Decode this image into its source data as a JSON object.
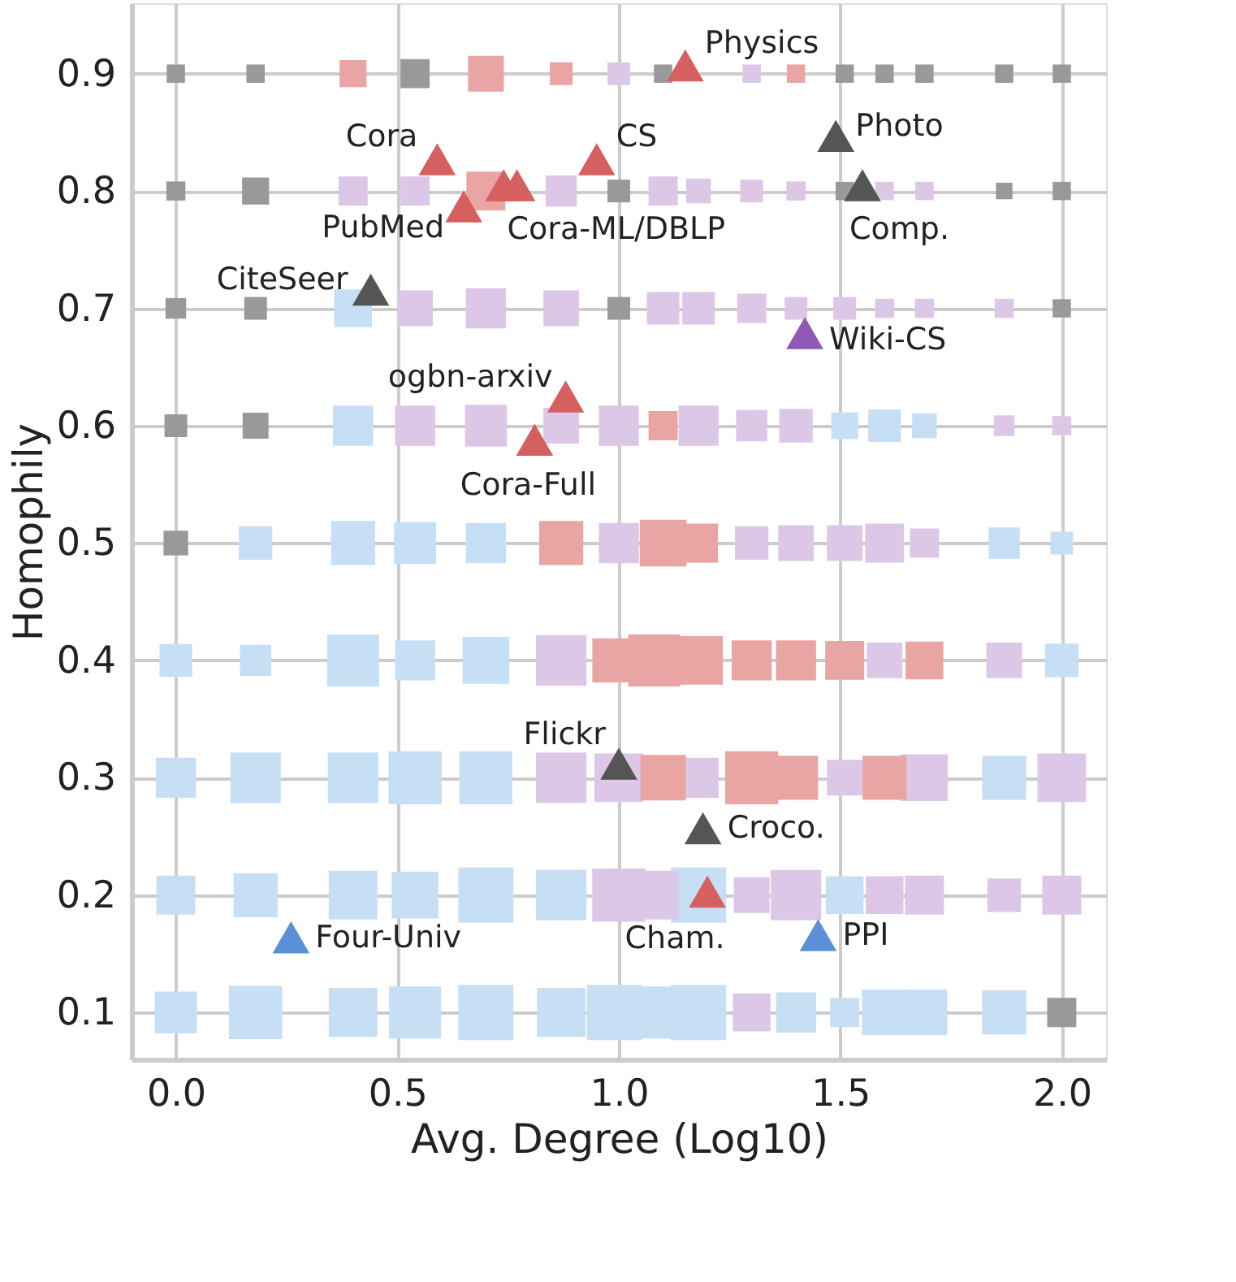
{
  "chart_data": {
    "type": "scatter",
    "xlabel": "Avg. Degree (Log10)",
    "ylabel": "Homophily",
    "xlim": [
      -0.1,
      2.1
    ],
    "ylim": [
      0.06,
      0.96
    ],
    "xticks": [
      {
        "value": 0,
        "label": "0.0"
      },
      0.5,
      {
        "value": 1,
        "label": "1.0"
      },
      1.5,
      {
        "value": 2,
        "label": "2.0"
      }
    ],
    "yticks": [
      0.1,
      0.2,
      0.3,
      0.4,
      0.5,
      0.6,
      0.7,
      0.8,
      0.9
    ],
    "grid": true,
    "series": [
      {
        "type": "bubble",
        "marker": "square",
        "color": "#c6dff5",
        "x": [
          0.4,
          0.4,
          1.51,
          1.6,
          1.69,
          0.18,
          0.4,
          0.54,
          0.7,
          1.87,
          2.0,
          0.0,
          0.18,
          0.4,
          0.54,
          0.7,
          2.0,
          0.0,
          0.18,
          0.4,
          0.54,
          0.7,
          1.87,
          0.0,
          0.18,
          0.4,
          0.54,
          0.7,
          0.87,
          1.18,
          1.51,
          0.0,
          0.18,
          0.4,
          0.54,
          0.7,
          0.87,
          0.99,
          1.08,
          1.18,
          1.4,
          1.51,
          1.6,
          1.69,
          1.87
        ],
        "values": [
          0.7,
          0.6,
          0.6,
          0.6,
          0.6,
          0.5,
          0.5,
          0.5,
          0.5,
          0.5,
          0.5,
          0.4,
          0.4,
          0.4,
          0.4,
          0.4,
          0.4,
          0.3,
          0.3,
          0.3,
          0.3,
          0.3,
          0.3,
          0.2,
          0.2,
          0.2,
          0.2,
          0.2,
          0.2,
          0.2,
          0.2,
          0.1,
          0.1,
          0.1,
          0.1,
          0.1,
          0.1,
          0.1,
          0.1,
          0.1,
          0.1,
          0.1,
          0.1,
          0.1,
          0.1
        ],
        "sizes": [
          0.47,
          0.53,
          0.24,
          0.35,
          0.2,
          0.37,
          0.64,
          0.58,
          0.53,
          0.32,
          0.17,
          0.35,
          0.32,
          0.89,
          0.53,
          0.72,
          0.37,
          0.53,
          0.84,
          0.84,
          0.93,
          0.93,
          0.64,
          0.5,
          0.64,
          0.78,
          0.72,
          1,
          0.84,
          1,
          0.47,
          0.58,
          0.93,
          0.78,
          0.89,
          1,
          0.78,
          1,
          0.89,
          1,
          0.53,
          0.28,
          0.68,
          0.68,
          0.64
        ]
      },
      {
        "type": "bubble",
        "marker": "square",
        "color": "#dcc8e6",
        "x": [
          1.0,
          1.3,
          0.4,
          0.54,
          0.87,
          1.1,
          1.18,
          1.3,
          1.4,
          1.6,
          1.69,
          0.54,
          0.7,
          0.87,
          1.1,
          1.18,
          1.3,
          1.4,
          1.51,
          1.6,
          1.69,
          1.87,
          0.54,
          0.7,
          0.87,
          1.0,
          1.18,
          1.3,
          1.4,
          1.87,
          2.0,
          1.0,
          1.3,
          1.4,
          1.51,
          1.6,
          1.69,
          0.87,
          1.6,
          1.87,
          0.87,
          1.0,
          1.18,
          1.51,
          1.69,
          2.0,
          1.0,
          1.08,
          1.3,
          1.4,
          1.6,
          1.69,
          1.87,
          2.0,
          1.3
        ],
        "values": [
          0.9,
          0.9,
          0.8,
          0.8,
          0.8,
          0.8,
          0.8,
          0.8,
          0.8,
          0.8,
          0.8,
          0.7,
          0.7,
          0.7,
          0.7,
          0.7,
          0.7,
          0.7,
          0.7,
          0.7,
          0.7,
          0.7,
          0.6,
          0.6,
          0.6,
          0.6,
          0.6,
          0.6,
          0.6,
          0.6,
          0.6,
          0.5,
          0.5,
          0.5,
          0.5,
          0.5,
          0.5,
          0.4,
          0.4,
          0.4,
          0.3,
          0.3,
          0.3,
          0.3,
          0.3,
          0.3,
          0.2,
          0.2,
          0.2,
          0.2,
          0.2,
          0.2,
          0.2,
          0.2,
          0.1
        ],
        "sizes": [
          0.17,
          0.11,
          0.28,
          0.28,
          0.32,
          0.28,
          0.2,
          0.17,
          0.12,
          0.11,
          0.11,
          0.42,
          0.53,
          0.42,
          0.35,
          0.35,
          0.28,
          0.17,
          0.17,
          0.12,
          0.12,
          0.12,
          0.53,
          0.58,
          0.42,
          0.53,
          0.53,
          0.32,
          0.37,
          0.14,
          0.12,
          0.53,
          0.37,
          0.42,
          0.42,
          0.5,
          0.28,
          0.84,
          0.42,
          0.42,
          0.84,
          0.78,
          0.53,
          0.42,
          0.72,
          0.78,
          0.93,
          0.78,
          0.42,
          0.84,
          0.47,
          0.5,
          0.37,
          0.5,
          0.47
        ]
      },
      {
        "type": "bubble",
        "marker": "square",
        "color": "#e8a5a3",
        "x": [
          0.4,
          0.7,
          0.87,
          1.4,
          0.7,
          1.1,
          0.87,
          1.1,
          1.18,
          0.99,
          1.08,
          1.18,
          1.3,
          1.4,
          1.51,
          1.69,
          1.1,
          1.3,
          1.4,
          1.6
        ],
        "values": [
          0.9,
          0.9,
          0.9,
          0.9,
          0.8,
          0.6,
          0.5,
          0.5,
          0.5,
          0.4,
          0.4,
          0.4,
          0.4,
          0.4,
          0.4,
          0.4,
          0.3,
          0.3,
          0.3,
          0.3
        ],
        "sizes": [
          0.24,
          0.42,
          0.17,
          0.11,
          0.5,
          0.28,
          0.64,
          0.72,
          0.5,
          0.64,
          0.89,
          0.78,
          0.53,
          0.53,
          0.5,
          0.47,
          0.68,
          0.93,
          0.64,
          0.64
        ]
      },
      {
        "type": "bubble",
        "marker": "square",
        "color": "#999999",
        "x": [
          0.0,
          0.18,
          0.54,
          1.1,
          1.51,
          1.6,
          1.69,
          1.87,
          2.0,
          0.0,
          0.18,
          1.0,
          1.51,
          1.87,
          2.0,
          0.0,
          0.18,
          1.0,
          2.0,
          0.0,
          0.18,
          0.0,
          2.0
        ],
        "values": [
          0.9,
          0.9,
          0.9,
          0.9,
          0.9,
          0.9,
          0.9,
          0.9,
          0.9,
          0.8,
          0.8,
          0.8,
          0.8,
          0.8,
          0.8,
          0.7,
          0.7,
          0.7,
          0.7,
          0.6,
          0.6,
          0.5,
          0.1
        ],
        "sizes": [
          0.11,
          0.11,
          0.28,
          0.11,
          0.11,
          0.11,
          0.11,
          0.11,
          0.11,
          0.12,
          0.24,
          0.17,
          0.11,
          0.09,
          0.11,
          0.14,
          0.17,
          0.17,
          0.11,
          0.17,
          0.22,
          0.2,
          0.28
        ]
      },
      {
        "marker": "triangle",
        "color": "#d65f5f",
        "x": [
          1.15,
          0.59,
          0.95,
          0.74,
          0.77,
          0.65,
          0.88,
          0.81,
          1.2
        ],
        "values": [
          0.907,
          0.827,
          0.827,
          0.805,
          0.805,
          0.787,
          0.625,
          0.588,
          0.203
        ]
      },
      {
        "marker": "triangle",
        "color": "#555555",
        "x": [
          1.49,
          1.55,
          0.44,
          1.0,
          1.19
        ],
        "values": [
          0.847,
          0.805,
          0.716,
          0.312,
          0.257
        ]
      },
      {
        "marker": "triangle",
        "color": "#8e5ab5",
        "x": [
          1.42
        ],
        "values": [
          0.679
        ]
      },
      {
        "marker": "triangle",
        "color": "#5b8fd6",
        "x": [
          1.45,
          0.26
        ],
        "values": [
          0.166,
          0.164
        ]
      }
    ],
    "annotations": [
      {
        "text": "Physics",
        "x": 1.15,
        "y": 0.907
      },
      {
        "text": "Cora",
        "x": 0.59,
        "y": 0.827
      },
      {
        "text": "CS",
        "x": 0.95,
        "y": 0.827
      },
      {
        "text": "Cora-ML/DBLP",
        "x": 0.77,
        "y": 0.805
      },
      {
        "text": "PubMed",
        "x": 0.65,
        "y": 0.787
      },
      {
        "text": "Photo",
        "x": 1.49,
        "y": 0.847
      },
      {
        "text": "Comp.",
        "x": 1.55,
        "y": 0.805
      },
      {
        "text": "CiteSeer",
        "x": 0.44,
        "y": 0.716
      },
      {
        "text": "Wiki-CS",
        "x": 1.42,
        "y": 0.679
      },
      {
        "text": "ogbn-arxiv",
        "x": 0.88,
        "y": 0.625
      },
      {
        "text": "Cora-Full",
        "x": 0.81,
        "y": 0.588
      },
      {
        "text": "Flickr",
        "x": 1.0,
        "y": 0.312
      },
      {
        "text": "Croco.",
        "x": 1.19,
        "y": 0.257
      },
      {
        "text": "Cham.",
        "x": 1.2,
        "y": 0.203
      },
      {
        "text": "PPI",
        "x": 1.45,
        "y": 0.166
      },
      {
        "text": "Four-Univ",
        "x": 0.26,
        "y": 0.164
      }
    ]
  }
}
